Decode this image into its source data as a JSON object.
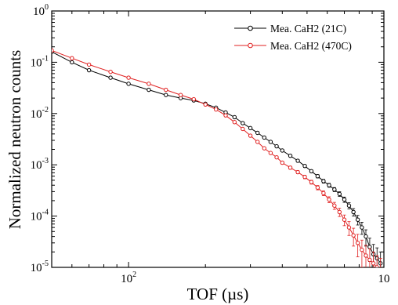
{
  "chart_data": {
    "type": "scatter",
    "xlabel": "TOF (µs)",
    "ylabel": "Normalized neutron counts",
    "xscale": "log",
    "yscale": "log",
    "xlim": [
      50,
      1000
    ],
    "ylim": [
      1e-05,
      1
    ],
    "x_ticks": [
      {
        "value": 100,
        "base": "10",
        "exp": "2"
      },
      {
        "value": 1000,
        "base": "10",
        "exp": ""
      }
    ],
    "y_ticks": [
      {
        "value": 1,
        "base": "10",
        "exp": "0"
      },
      {
        "value": 0.1,
        "base": "10",
        "exp": "-1"
      },
      {
        "value": 0.01,
        "base": "10",
        "exp": "-2"
      },
      {
        "value": 0.001,
        "base": "10",
        "exp": "-3"
      },
      {
        "value": 0.0001,
        "base": "10",
        "exp": "-4"
      },
      {
        "value": 1e-05,
        "base": "10",
        "exp": "-5"
      }
    ],
    "legend_position": "top-right",
    "series": [
      {
        "name": "Mea. CaH2  (21C)",
        "color": "#000000",
        "marker": "circle-open",
        "x": [
          50,
          60,
          70,
          85,
          100,
          120,
          140,
          160,
          180,
          200,
          220,
          240,
          260,
          280,
          300,
          320,
          340,
          360,
          380,
          400,
          430,
          460,
          490,
          520,
          550,
          580,
          610,
          640,
          670,
          700,
          730,
          760,
          790,
          820,
          850,
          880,
          910,
          940,
          970
        ],
        "y": [
          0.16,
          0.1,
          0.07,
          0.05,
          0.038,
          0.029,
          0.023,
          0.02,
          0.018,
          0.0155,
          0.013,
          0.0105,
          0.0085,
          0.0065,
          0.0052,
          0.0042,
          0.0034,
          0.0028,
          0.0023,
          0.0019,
          0.0015,
          0.0012,
          0.00095,
          0.00075,
          0.0006,
          0.00048,
          0.0004,
          0.00033,
          0.00027,
          0.00021,
          0.00016,
          0.00012,
          8.5e-05,
          6e-05,
          4e-05,
          2.5e-05,
          1.8e-05,
          1.5e-05,
          1.2e-05
        ],
        "err": [
          0.004,
          0.003,
          0.002,
          0.0015,
          0.001,
          0.0008,
          0.0006,
          0.0005,
          0.0005,
          0.0004,
          0.0004,
          0.0003,
          0.0003,
          0.0002,
          0.00018,
          0.00015,
          0.00013,
          0.00011,
          0.0001,
          9e-05,
          8e-05,
          7e-05,
          6e-05,
          5e-05,
          4.5e-05,
          4e-05,
          3.5e-05,
          3e-05,
          2.8e-05,
          2.5e-05,
          2.2e-05,
          2e-05,
          1.8e-05,
          1.6e-05,
          1.4e-05,
          1.2e-05,
          1e-05,
          9e-06,
          8e-06
        ]
      },
      {
        "name": "Mea. CaH2 (470C)",
        "color": "#e02020",
        "marker": "circle-open",
        "x": [
          50,
          60,
          70,
          85,
          100,
          120,
          140,
          160,
          180,
          200,
          220,
          240,
          260,
          280,
          300,
          320,
          340,
          360,
          380,
          400,
          430,
          460,
          490,
          520,
          550,
          580,
          610,
          640,
          670,
          700,
          730,
          760,
          790,
          820,
          850,
          880,
          910,
          940,
          970
        ],
        "y": [
          0.17,
          0.12,
          0.09,
          0.065,
          0.05,
          0.038,
          0.029,
          0.023,
          0.019,
          0.015,
          0.012,
          0.0092,
          0.0068,
          0.005,
          0.0037,
          0.0028,
          0.0021,
          0.0017,
          0.0014,
          0.0011,
          0.00088,
          0.00072,
          0.00058,
          0.00046,
          0.00036,
          0.00028,
          0.00021,
          0.00016,
          0.00012,
          8.5e-05,
          6e-05,
          4.2e-05,
          3e-05,
          2.2e-05,
          1.7e-05,
          1.4e-05,
          1.2e-05,
          1e-05,
          9e-06
        ],
        "err": [
          0.004,
          0.003,
          0.0025,
          0.0018,
          0.0012,
          0.0009,
          0.0007,
          0.0006,
          0.0005,
          0.0004,
          0.00035,
          0.0003,
          0.00025,
          0.0002,
          0.00016,
          0.00013,
          0.00011,
          9e-05,
          8e-05,
          7e-05,
          6e-05,
          5e-05,
          4.5e-05,
          4e-05,
          3.5e-05,
          3e-05,
          2.8e-05,
          2.5e-05,
          2.2e-05,
          2e-05,
          1.8e-05,
          1.6e-05,
          1.4e-05,
          1.2e-05,
          1e-05,
          9e-06,
          8e-06,
          7e-06,
          6e-06
        ]
      }
    ]
  }
}
